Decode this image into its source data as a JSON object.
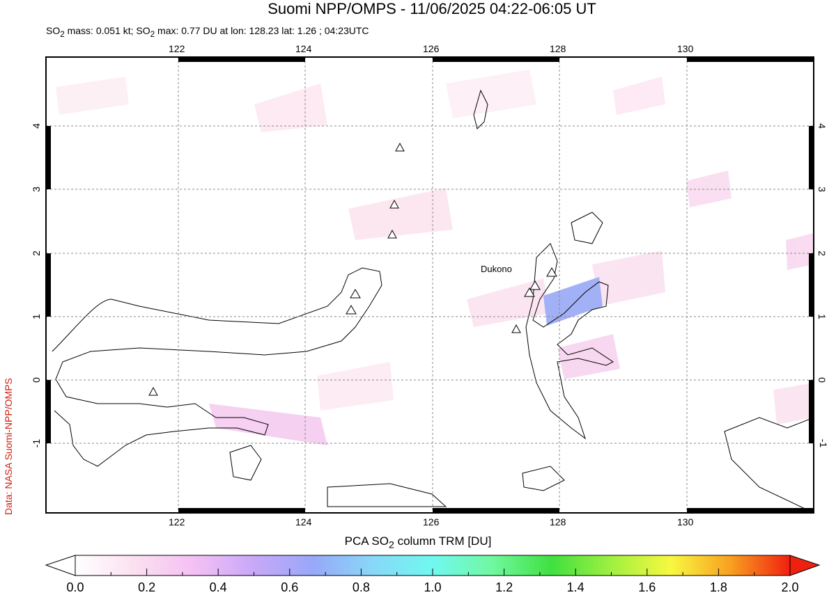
{
  "header": {
    "title": "Suomi NPP/OMPS - 11/06/2025 04:22-06:05 UT",
    "subtitle_parts": [
      "SO",
      "2",
      " mass: 0.051 kt; SO",
      "2",
      " max: 0.77 DU at lon: 128.23 lat: 1.26 ; 04:23UTC"
    ]
  },
  "credit": "Data: NASA Suomi-NPP/OMPS",
  "map": {
    "lon_ticks": [
      "122",
      "124",
      "126",
      "128",
      "130"
    ],
    "lat_ticks": [
      "4",
      "3",
      "2",
      "1",
      "0",
      "-1"
    ],
    "volcano_label": "Dukono",
    "lon_range": [
      119.9,
      132.0
    ],
    "lat_range": [
      -2.1,
      5.1
    ]
  },
  "colorbar": {
    "title_parts": [
      "PCA SO",
      "2",
      " column TRM [DU]"
    ],
    "ticks": [
      "0.0",
      "0.2",
      "0.4",
      "0.6",
      "0.8",
      "1.0",
      "1.2",
      "1.4",
      "1.6",
      "1.8",
      "2.0"
    ],
    "range": [
      0,
      2
    ],
    "colors": [
      "#ffffff",
      "#fbe0f0",
      "#f4c0f4",
      "#c8a8f8",
      "#98a8f8",
      "#88d8f8",
      "#70f8f0",
      "#70f8a0",
      "#40e040",
      "#a0f040",
      "#f8f840",
      "#f8a020",
      "#f02010"
    ]
  }
}
